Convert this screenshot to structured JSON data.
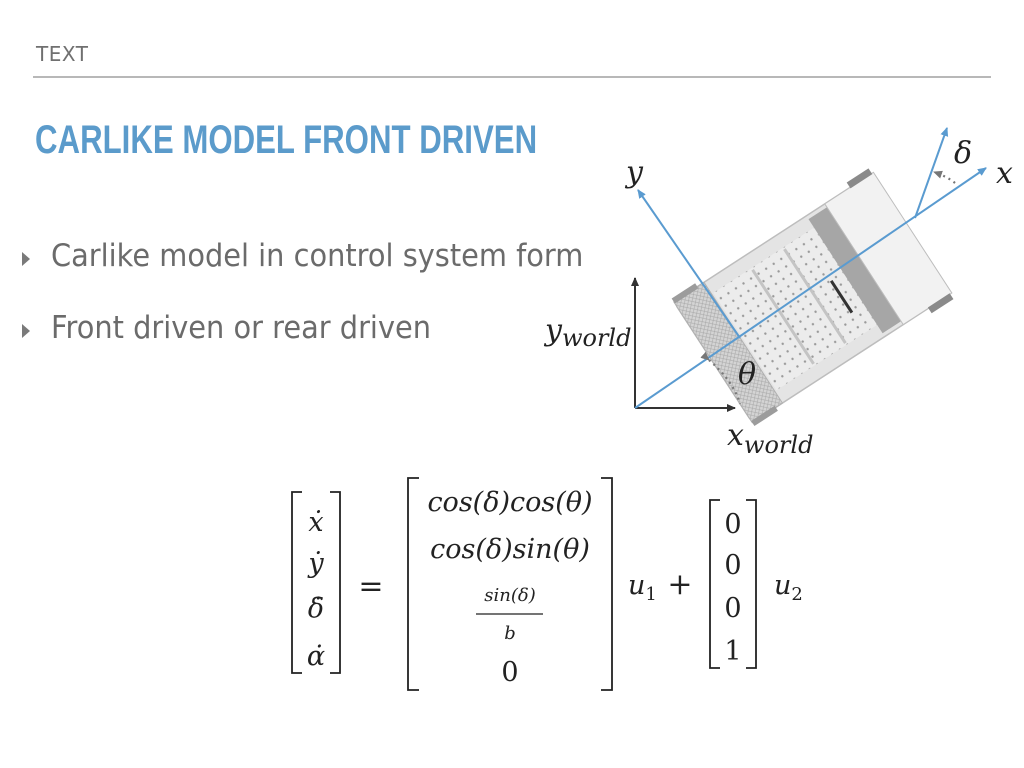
{
  "header": {
    "label": "TEXT"
  },
  "title": "CARLIKE MODEL FRONT DRIVEN",
  "bullets": [
    {
      "text": "Carlike model in control system form"
    },
    {
      "text": "Front driven or rear driven"
    }
  ],
  "diagram": {
    "labels": {
      "y": "y",
      "x": "x",
      "delta": "δ",
      "theta": "θ",
      "y_world": "y",
      "y_world_sub": "world",
      "x_world": "x",
      "x_world_sub": "world"
    },
    "colors": {
      "axis_blue": "#5a9bd0",
      "world_axis": "#333333"
    }
  },
  "equation": {
    "lhs": [
      "ẋ",
      "ẏ",
      "δ̇",
      "α̇"
    ],
    "equals": "=",
    "col1": [
      "cos(δ)cos(θ)",
      "cos(δ)sin(θ)",
      "sin(δ)",
      "b",
      "0"
    ],
    "u1": "u",
    "u1_sub": "1",
    "plus": "+",
    "col2": [
      "0",
      "0",
      "0",
      "1"
    ],
    "u2": "u",
    "u2_sub": "2"
  }
}
